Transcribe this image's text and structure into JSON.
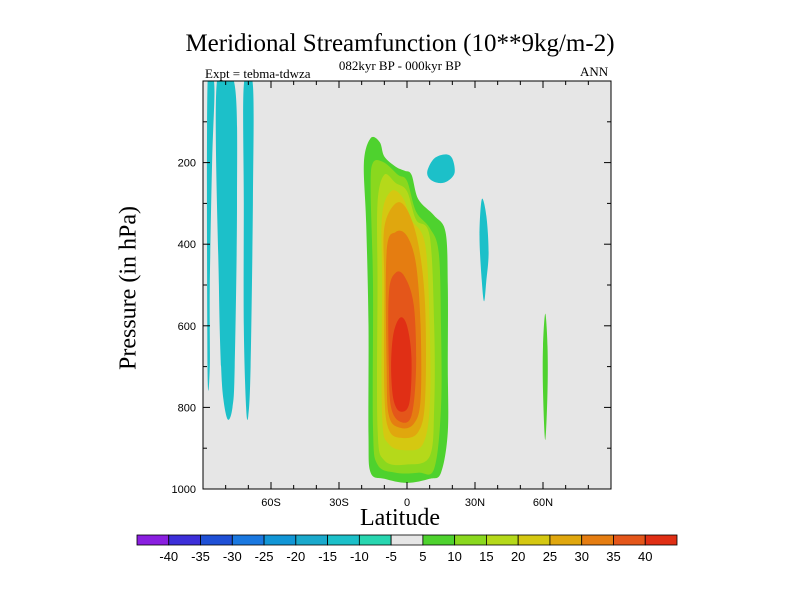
{
  "chart_data": {
    "type": "contour",
    "title": "Meridional Streamfunction (10**9kg/m-2)",
    "subtitle": "082kyr BP - 000kyr BP",
    "experiment": "Expt = tebma-tdwza",
    "season": "ANN",
    "xlabel": "Latitude",
    "ylabel": "Pressure (in hPa)",
    "xlim": [
      -90,
      90
    ],
    "ylim": [
      1000,
      0
    ],
    "x_ticks": [
      -60,
      -30,
      0,
      30,
      60
    ],
    "x_tick_labels": [
      "60S",
      "30S",
      "0",
      "30N",
      "60N"
    ],
    "y_ticks": [
      200,
      400,
      600,
      800,
      1000
    ],
    "y_tick_labels": [
      "200",
      "400",
      "600",
      "800",
      "1000"
    ],
    "background_color": "#e6e6e6",
    "contour_levels": [
      -40,
      -35,
      -30,
      -25,
      -20,
      -15,
      -10,
      -5,
      5,
      10,
      15,
      20,
      25,
      30,
      35,
      40
    ],
    "colorbar_labels": [
      "-40",
      "-35",
      "-30",
      "-25",
      "-20",
      "-15",
      "-10",
      "-5",
      "5",
      "10",
      "15",
      "20",
      "25",
      "30",
      "35",
      "40"
    ],
    "colorbar_colors": [
      "#8a1fe0",
      "#3d2fd9",
      "#1f50d6",
      "#1a78e0",
      "#1196d6",
      "#1aa9cc",
      "#1cc0c9",
      "#28d6b0",
      "#e6e6e6",
      "#4ed22e",
      "#8ad81e",
      "#b5d91a",
      "#d5c811",
      "#e0a70e",
      "#e57d11",
      "#e4561a",
      "#e02f15"
    ],
    "regions": [
      {
        "name": "negative-cell-far-south-a",
        "level": -10,
        "color": "#1cc0c9",
        "points": [
          [
            -88,
            10
          ],
          [
            -85,
            10
          ],
          [
            -86,
            200
          ],
          [
            -87,
            500
          ],
          [
            -87,
            700
          ],
          [
            -88,
            700
          ]
        ]
      },
      {
        "name": "negative-cell-far-south-b",
        "level": -10,
        "color": "#1cc0c9",
        "points": [
          [
            -84,
            10
          ],
          [
            -76,
            10
          ],
          [
            -75,
            300
          ],
          [
            -76,
            700
          ],
          [
            -77,
            800
          ],
          [
            -79,
            830
          ],
          [
            -81,
            780
          ],
          [
            -82,
            700
          ],
          [
            -83,
            500
          ]
        ]
      },
      {
        "name": "negative-cell-far-south-c",
        "level": -10,
        "color": "#1cc0c9",
        "points": [
          [
            -72,
            10
          ],
          [
            -68,
            10
          ],
          [
            -68,
            300
          ],
          [
            -69,
            700
          ],
          [
            -70,
            820
          ],
          [
            -71,
            800
          ],
          [
            -72,
            600
          ],
          [
            -72,
            300
          ]
        ]
      },
      {
        "name": "negative-cell-north-upper",
        "level": -10,
        "color": "#1cc0c9",
        "points": [
          [
            9,
            220
          ],
          [
            12,
            190
          ],
          [
            17,
            180
          ],
          [
            20,
            190
          ],
          [
            21,
            225
          ],
          [
            18,
            245
          ],
          [
            14,
            250
          ],
          [
            10,
            240
          ]
        ]
      },
      {
        "name": "negative-cell-30N",
        "level": -10,
        "color": "#1cc0c9",
        "points": [
          [
            33,
            290
          ],
          [
            35,
            330
          ],
          [
            36,
            420
          ],
          [
            35,
            490
          ],
          [
            34,
            540
          ],
          [
            33,
            490
          ],
          [
            32,
            380
          ]
        ]
      },
      {
        "name": "positive-cell-60N",
        "level": 5,
        "color": "#4ed22e",
        "points": [
          [
            61,
            570
          ],
          [
            62,
            650
          ],
          [
            62,
            760
          ],
          [
            61,
            880
          ],
          [
            60,
            760
          ],
          [
            60,
            650
          ]
        ]
      },
      {
        "name": "overturning-5",
        "level": 5,
        "color": "#4ed22e",
        "points": [
          [
            -19,
            200
          ],
          [
            -16,
            140
          ],
          [
            -12,
            150
          ],
          [
            -10,
            185
          ],
          [
            -5,
            210
          ],
          [
            -1,
            220
          ],
          [
            2,
            230
          ],
          [
            5,
            290
          ],
          [
            12,
            330
          ],
          [
            17,
            370
          ],
          [
            18,
            500
          ],
          [
            18,
            700
          ],
          [
            18,
            860
          ],
          [
            15,
            960
          ],
          [
            10,
            975
          ],
          [
            0,
            985
          ],
          [
            -10,
            975
          ],
          [
            -16,
            960
          ],
          [
            -17,
            870
          ],
          [
            -17,
            600
          ],
          [
            -18,
            350
          ]
        ]
      },
      {
        "name": "overturning-10",
        "level": 10,
        "color": "#8ad81e",
        "points": [
          [
            -16,
            270
          ],
          [
            -15,
            200
          ],
          [
            -10,
            200
          ],
          [
            -4,
            230
          ],
          [
            0,
            245
          ],
          [
            4,
            320
          ],
          [
            10,
            360
          ],
          [
            14,
            420
          ],
          [
            15,
            600
          ],
          [
            15,
            800
          ],
          [
            12,
            950
          ],
          [
            5,
            960
          ],
          [
            -5,
            960
          ],
          [
            -13,
            940
          ],
          [
            -15,
            850
          ],
          [
            -15,
            500
          ]
        ]
      },
      {
        "name": "overturning-15",
        "level": 15,
        "color": "#b5d91a",
        "points": [
          [
            -13,
            300
          ],
          [
            -10,
            230
          ],
          [
            -5,
            250
          ],
          [
            0,
            270
          ],
          [
            4,
            340
          ],
          [
            10,
            380
          ],
          [
            12,
            600
          ],
          [
            12,
            800
          ],
          [
            10,
            920
          ],
          [
            0,
            940
          ],
          [
            -10,
            930
          ],
          [
            -13,
            850
          ],
          [
            -13,
            500
          ]
        ]
      },
      {
        "name": "overturning-20",
        "level": 20,
        "color": "#d5c811",
        "points": [
          [
            -11,
            330
          ],
          [
            -7,
            270
          ],
          [
            -2,
            285
          ],
          [
            2,
            340
          ],
          [
            8,
            400
          ],
          [
            10,
            600
          ],
          [
            10,
            800
          ],
          [
            7,
            890
          ],
          [
            0,
            905
          ],
          [
            -8,
            890
          ],
          [
            -11,
            820
          ],
          [
            -11,
            500
          ]
        ]
      },
      {
        "name": "overturning-25",
        "level": 25,
        "color": "#e0a70e",
        "points": [
          [
            -10,
            360
          ],
          [
            -5,
            300
          ],
          [
            0,
            315
          ],
          [
            5,
            400
          ],
          [
            8,
            550
          ],
          [
            8,
            780
          ],
          [
            5,
            860
          ],
          [
            -2,
            875
          ],
          [
            -8,
            855
          ],
          [
            -10,
            760
          ],
          [
            -10,
            500
          ]
        ]
      },
      {
        "name": "overturning-30",
        "level": 30,
        "color": "#e57d11",
        "points": [
          [
            -9,
            420
          ],
          [
            -5,
            370
          ],
          [
            0,
            380
          ],
          [
            4,
            450
          ],
          [
            6,
            600
          ],
          [
            6,
            780
          ],
          [
            3,
            840
          ],
          [
            -3,
            850
          ],
          [
            -8,
            820
          ],
          [
            -9,
            700
          ]
        ]
      },
      {
        "name": "overturning-35",
        "level": 35,
        "color": "#e4561a",
        "points": [
          [
            -8,
            520
          ],
          [
            -5,
            470
          ],
          [
            -1,
            480
          ],
          [
            3,
            550
          ],
          [
            4,
            700
          ],
          [
            2,
            820
          ],
          [
            -3,
            835
          ],
          [
            -7,
            800
          ],
          [
            -8,
            700
          ]
        ]
      },
      {
        "name": "overturning-40",
        "level": 40,
        "color": "#e02f15",
        "points": [
          [
            -6,
            620
          ],
          [
            -3,
            580
          ],
          [
            0,
            600
          ],
          [
            2,
            680
          ],
          [
            1,
            790
          ],
          [
            -3,
            810
          ],
          [
            -6,
            780
          ],
          [
            -7,
            700
          ]
        ]
      }
    ]
  }
}
